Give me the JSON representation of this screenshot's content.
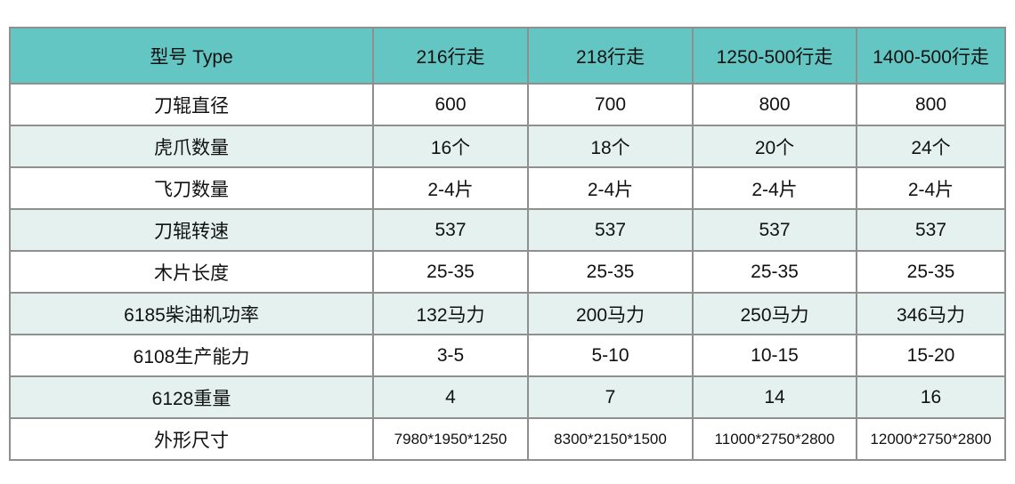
{
  "colors": {
    "header_bg": "#63c6c3",
    "alt_row_bg": "#e4f1ef",
    "border": "#8f8f8f",
    "text": "#111111"
  },
  "table": {
    "header": {
      "label": "型号 Type",
      "columns": [
        "216行走",
        "218行走",
        "1250-500行走",
        "1400-500行走"
      ]
    },
    "rows": [
      {
        "label": "刀辊直径",
        "values": [
          "600",
          "700",
          "800",
          "800"
        ]
      },
      {
        "label": "虎爪数量",
        "values": [
          "16个",
          "18个",
          "20个",
          "24个"
        ]
      },
      {
        "label": "飞刀数量",
        "values": [
          "2-4片",
          "2-4片",
          "2-4片",
          "2-4片"
        ]
      },
      {
        "label": "刀辊转速",
        "values": [
          "537",
          "537",
          "537",
          "537"
        ]
      },
      {
        "label": "木片长度",
        "values": [
          "25-35",
          "25-35",
          "25-35",
          "25-35"
        ]
      },
      {
        "label": "6185柴油机功率",
        "values": [
          "132马力",
          "200马力",
          "250马力",
          "346马力"
        ]
      },
      {
        "label": "6108生产能力",
        "values": [
          "3-5",
          "5-10",
          "10-15",
          "15-20"
        ]
      },
      {
        "label": "6128重量",
        "values": [
          "4",
          "7",
          "14",
          "16"
        ]
      },
      {
        "label": "外形尺寸",
        "values": [
          "7980*1950*1250",
          "8300*2150*1500",
          "11000*2750*2800",
          "12000*2750*2800"
        ]
      }
    ]
  }
}
